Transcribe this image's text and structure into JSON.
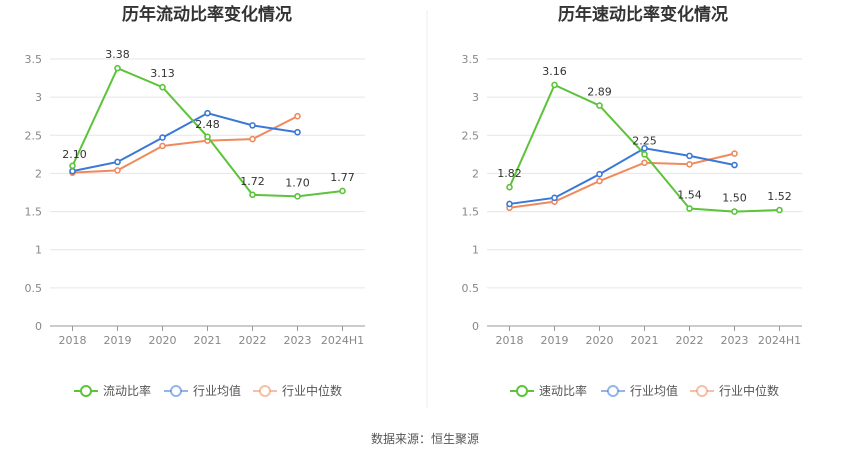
{
  "source": "数据来源：恒生聚源",
  "colors": {
    "company": "#5cc33a",
    "avg": "#3a78d8",
    "median": "#f08a5d",
    "grid": "#e6e6e6",
    "axis": "#999999"
  },
  "chart_data": [
    {
      "type": "line",
      "title": "历年流动比率变化情况",
      "categories": [
        "2018",
        "2019",
        "2020",
        "2021",
        "2022",
        "2023",
        "2024H1"
      ],
      "ylim": [
        0,
        3.5
      ],
      "yticks": [
        "0",
        "0.5",
        "1",
        "1.5",
        "2",
        "2.5",
        "3",
        "3.5"
      ],
      "grid": true,
      "legend_position": "bottom",
      "series": [
        {
          "name": "流动比率",
          "color_key": "company",
          "values": [
            2.1,
            3.38,
            3.13,
            2.48,
            1.72,
            1.7,
            1.77
          ],
          "labels": [
            "2.10",
            "3.38",
            "3.13",
            "2.48",
            "1.72",
            "1.70",
            "1.77"
          ]
        },
        {
          "name": "行业均值",
          "color_key": "avg",
          "values": [
            2.03,
            2.15,
            2.47,
            2.79,
            2.63,
            2.54,
            null
          ]
        },
        {
          "name": "行业中位数",
          "color_key": "median",
          "values": [
            2.01,
            2.04,
            2.36,
            2.43,
            2.45,
            2.75,
            null
          ]
        }
      ]
    },
    {
      "type": "line",
      "title": "历年速动比率变化情况",
      "categories": [
        "2018",
        "2019",
        "2020",
        "2021",
        "2022",
        "2023",
        "2024H1"
      ],
      "ylim": [
        0,
        3.5
      ],
      "yticks": [
        "0",
        "0.5",
        "1",
        "1.5",
        "2",
        "2.5",
        "3",
        "3.5"
      ],
      "grid": true,
      "legend_position": "bottom",
      "series": [
        {
          "name": "速动比率",
          "color_key": "company",
          "values": [
            1.82,
            3.16,
            2.89,
            2.25,
            1.54,
            1.5,
            1.52
          ],
          "labels": [
            "1.82",
            "3.16",
            "2.89",
            "2.25",
            "1.54",
            "1.50",
            "1.52"
          ]
        },
        {
          "name": "行业均值",
          "color_key": "avg",
          "values": [
            1.6,
            1.68,
            1.99,
            2.33,
            2.23,
            2.11,
            null
          ]
        },
        {
          "name": "行业中位数",
          "color_key": "median",
          "values": [
            1.55,
            1.63,
            1.9,
            2.14,
            2.12,
            2.26,
            null
          ]
        }
      ]
    }
  ]
}
